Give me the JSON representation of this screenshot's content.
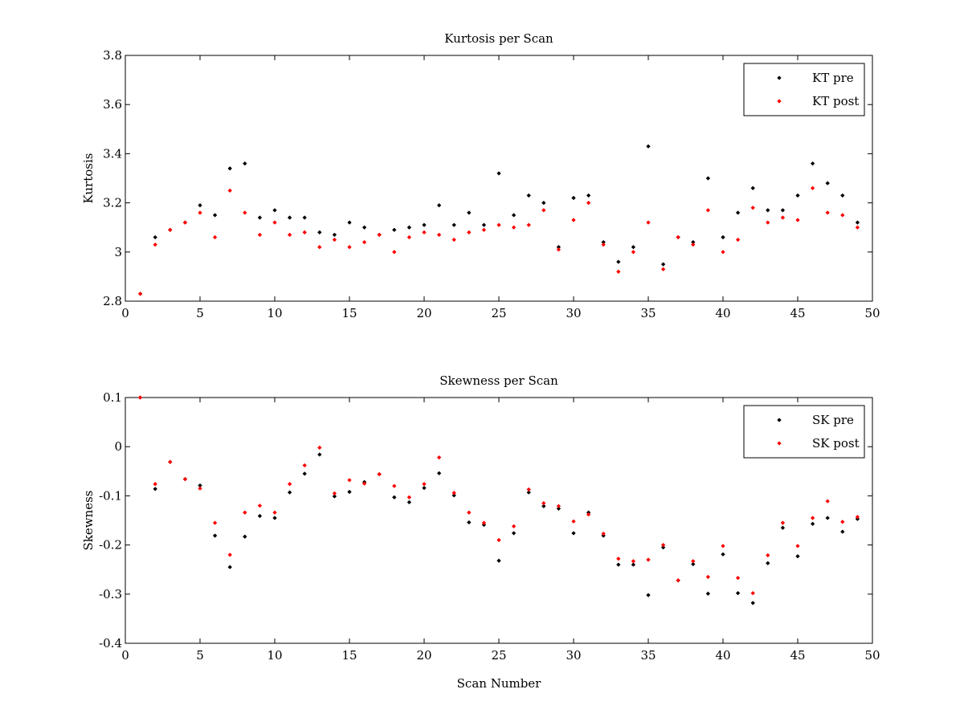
{
  "colors": {
    "pre": "#000000",
    "post": "#ff0000"
  },
  "chart_data": [
    {
      "type": "scatter",
      "title": "Kurtosis per Scan",
      "xlabel": "",
      "ylabel": "Kurtosis",
      "xlim": [
        0,
        50
      ],
      "ylim": [
        2.8,
        3.8
      ],
      "xticks": [
        0,
        5,
        10,
        15,
        20,
        25,
        30,
        35,
        40,
        45,
        50
      ],
      "xtick_labels": [
        "0",
        "5",
        "10",
        "15",
        "20",
        "25",
        "30",
        "35",
        "40",
        "45",
        "50"
      ],
      "yticks": [
        2.8,
        3.0,
        3.2,
        3.4,
        3.6,
        3.8
      ],
      "ytick_labels": [
        "2.8",
        "3",
        "3.2",
        "3.4",
        "3.6",
        "3.8"
      ],
      "legend_position": "top-right",
      "series": [
        {
          "name": "KT pre",
          "color": "#000000",
          "x": [
            1,
            2,
            3,
            4,
            5,
            6,
            7,
            8,
            9,
            10,
            11,
            12,
            13,
            14,
            15,
            16,
            17,
            18,
            19,
            20,
            21,
            22,
            23,
            24,
            25,
            26,
            27,
            28,
            29,
            30,
            31,
            32,
            33,
            34,
            35,
            36,
            37,
            38,
            39,
            40,
            41,
            42,
            43,
            44,
            45,
            46,
            47,
            48,
            49
          ],
          "values": [
            2.83,
            3.06,
            3.09,
            3.12,
            3.19,
            3.15,
            3.34,
            3.36,
            3.14,
            3.17,
            3.14,
            3.14,
            3.08,
            3.07,
            3.12,
            3.1,
            3.07,
            3.09,
            3.1,
            3.11,
            3.19,
            3.11,
            3.16,
            3.11,
            3.32,
            3.15,
            3.23,
            3.2,
            3.02,
            3.22,
            3.23,
            3.04,
            2.96,
            3.02,
            3.43,
            2.95,
            3.06,
            3.04,
            3.3,
            3.06,
            3.16,
            3.26,
            3.17,
            3.17,
            3.23,
            3.36,
            3.28,
            3.23,
            3.12
          ]
        },
        {
          "name": "KT post",
          "color": "#ff0000",
          "x": [
            1,
            2,
            3,
            4,
            5,
            6,
            7,
            8,
            9,
            10,
            11,
            12,
            13,
            14,
            15,
            16,
            17,
            18,
            19,
            20,
            21,
            22,
            23,
            24,
            25,
            26,
            27,
            28,
            29,
            30,
            31,
            32,
            33,
            34,
            35,
            36,
            37,
            38,
            39,
            40,
            41,
            42,
            43,
            44,
            45,
            46,
            47,
            48,
            49
          ],
          "values": [
            2.83,
            3.03,
            3.09,
            3.12,
            3.16,
            3.06,
            3.25,
            3.16,
            3.07,
            3.12,
            3.07,
            3.08,
            3.02,
            3.05,
            3.02,
            3.04,
            3.07,
            3.0,
            3.06,
            3.08,
            3.07,
            3.05,
            3.08,
            3.09,
            3.11,
            3.1,
            3.11,
            3.17,
            3.01,
            3.13,
            3.2,
            3.03,
            2.92,
            3.0,
            3.12,
            2.93,
            3.06,
            3.03,
            3.17,
            3.0,
            3.05,
            3.18,
            3.12,
            3.14,
            3.13,
            3.26,
            3.16,
            3.15,
            3.1
          ]
        }
      ]
    },
    {
      "type": "scatter",
      "title": "Skewness per Scan",
      "xlabel": "Scan Number",
      "ylabel": "Skewness",
      "xlim": [
        0,
        50
      ],
      "ylim": [
        -0.4,
        0.1
      ],
      "xticks": [
        0,
        5,
        10,
        15,
        20,
        25,
        30,
        35,
        40,
        45,
        50
      ],
      "xtick_labels": [
        "0",
        "5",
        "10",
        "15",
        "20",
        "25",
        "30",
        "35",
        "40",
        "45",
        "50"
      ],
      "yticks": [
        -0.4,
        -0.3,
        -0.2,
        -0.1,
        0,
        0.1
      ],
      "ytick_labels": [
        "-0.4",
        "-0.3",
        "-0.2",
        "-0.1",
        "0",
        "0.1"
      ],
      "legend_position": "top-right",
      "series": [
        {
          "name": "SK pre",
          "color": "#000000",
          "x": [
            1,
            2,
            3,
            4,
            5,
            6,
            7,
            8,
            9,
            10,
            11,
            12,
            13,
            14,
            15,
            16,
            17,
            18,
            19,
            20,
            21,
            22,
            23,
            24,
            25,
            26,
            27,
            28,
            29,
            30,
            31,
            32,
            33,
            34,
            35,
            36,
            37,
            38,
            39,
            40,
            41,
            42,
            43,
            44,
            45,
            46,
            47,
            48,
            49
          ],
          "values": [
            0.1,
            -0.086,
            -0.031,
            -0.066,
            -0.079,
            -0.181,
            -0.245,
            -0.183,
            -0.141,
            -0.145,
            -0.093,
            -0.055,
            -0.016,
            -0.101,
            -0.092,
            -0.072,
            -0.056,
            -0.103,
            -0.113,
            -0.084,
            -0.054,
            -0.099,
            -0.154,
            -0.159,
            -0.232,
            -0.176,
            -0.093,
            -0.121,
            -0.126,
            -0.176,
            -0.134,
            -0.181,
            -0.24,
            -0.24,
            -0.302,
            -0.205,
            -0.272,
            -0.239,
            -0.299,
            -0.219,
            -0.298,
            -0.318,
            -0.237,
            -0.165,
            -0.223,
            -0.157,
            -0.145,
            -0.173,
            -0.147
          ]
        },
        {
          "name": "SK post",
          "color": "#ff0000",
          "x": [
            1,
            2,
            3,
            4,
            5,
            6,
            7,
            8,
            9,
            10,
            11,
            12,
            13,
            14,
            15,
            16,
            17,
            18,
            19,
            20,
            21,
            22,
            23,
            24,
            25,
            26,
            27,
            28,
            29,
            30,
            31,
            32,
            33,
            34,
            35,
            36,
            37,
            38,
            39,
            40,
            41,
            42,
            43,
            44,
            45,
            46,
            47,
            48,
            49
          ],
          "values": [
            0.1,
            -0.076,
            -0.031,
            -0.066,
            -0.085,
            -0.155,
            -0.22,
            -0.134,
            -0.12,
            -0.134,
            -0.076,
            -0.038,
            -0.002,
            -0.095,
            -0.068,
            -0.075,
            -0.056,
            -0.08,
            -0.103,
            -0.076,
            -0.022,
            -0.094,
            -0.134,
            -0.155,
            -0.19,
            -0.162,
            -0.087,
            -0.115,
            -0.121,
            -0.152,
            -0.138,
            -0.177,
            -0.228,
            -0.233,
            -0.23,
            -0.2,
            -0.272,
            -0.233,
            -0.265,
            -0.202,
            -0.267,
            -0.298,
            -0.221,
            -0.155,
            -0.202,
            -0.145,
            -0.111,
            -0.153,
            -0.143
          ]
        }
      ]
    }
  ]
}
